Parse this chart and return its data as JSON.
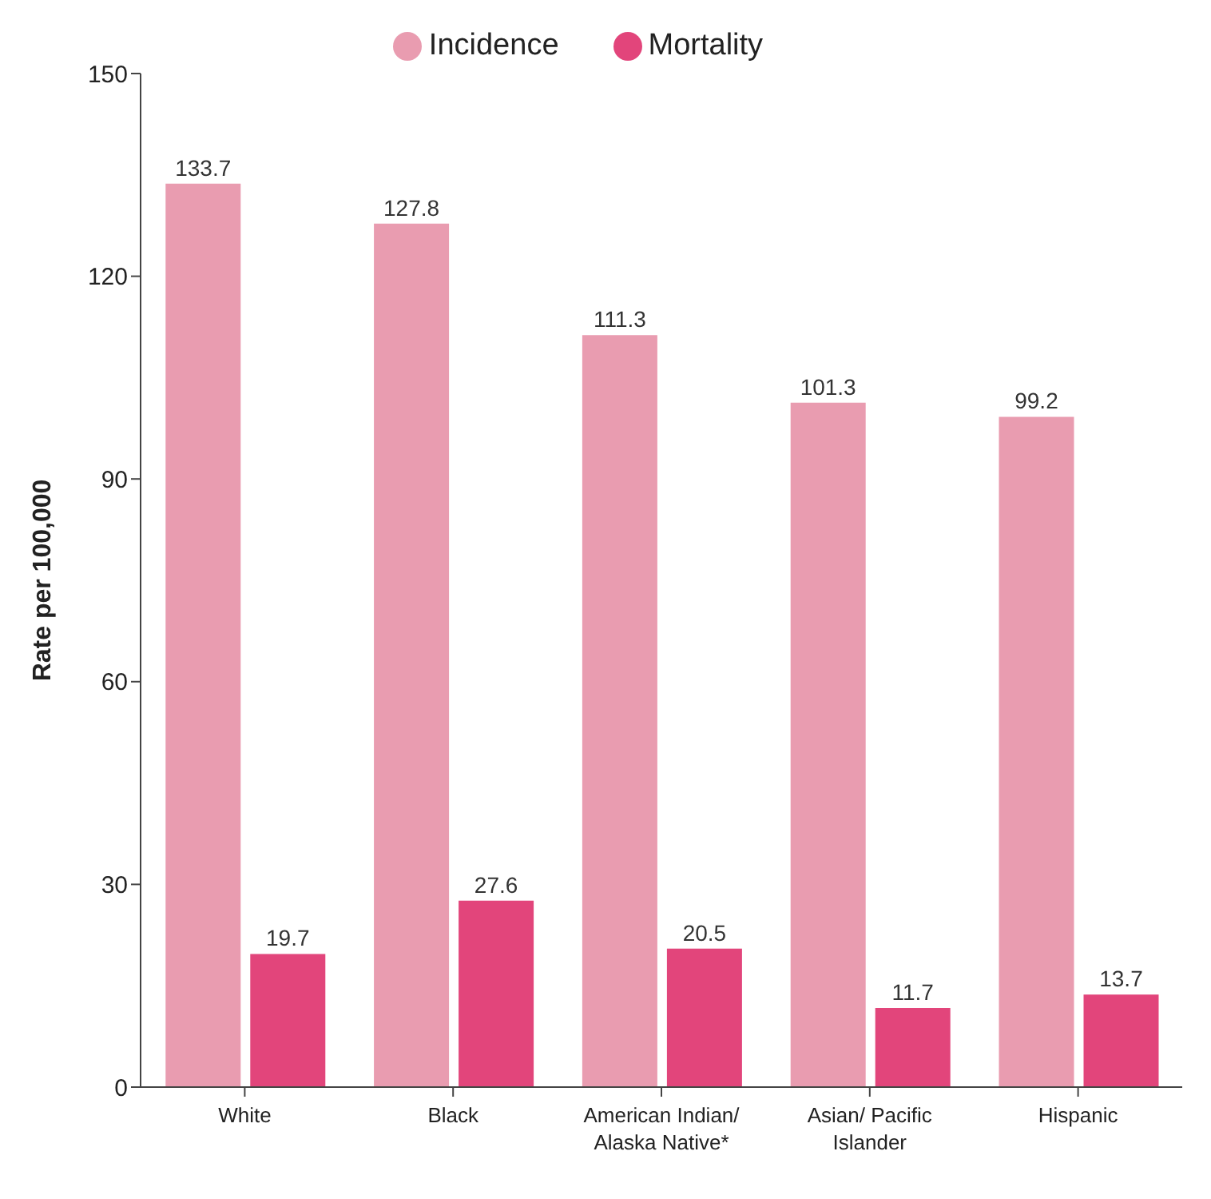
{
  "chart_data": {
    "type": "bar",
    "ylabel": "Rate per 100,000",
    "categories": [
      "White",
      "Black",
      "American Indian/ Alaska Native*",
      "Asian/ Pacific Islander",
      "Hispanic"
    ],
    "series": [
      {
        "name": "Incidence",
        "color": "#e99cb0",
        "values": [
          133.7,
          127.8,
          111.3,
          101.3,
          99.2
        ]
      },
      {
        "name": "Mortality",
        "color": "#e2457b",
        "values": [
          19.7,
          27.6,
          20.5,
          11.7,
          13.7
        ]
      }
    ],
    "ylim": [
      0,
      150
    ],
    "yticks": [
      0,
      30,
      60,
      90,
      120,
      150
    ],
    "grid": false,
    "legend": "top",
    "data_labels": true
  }
}
